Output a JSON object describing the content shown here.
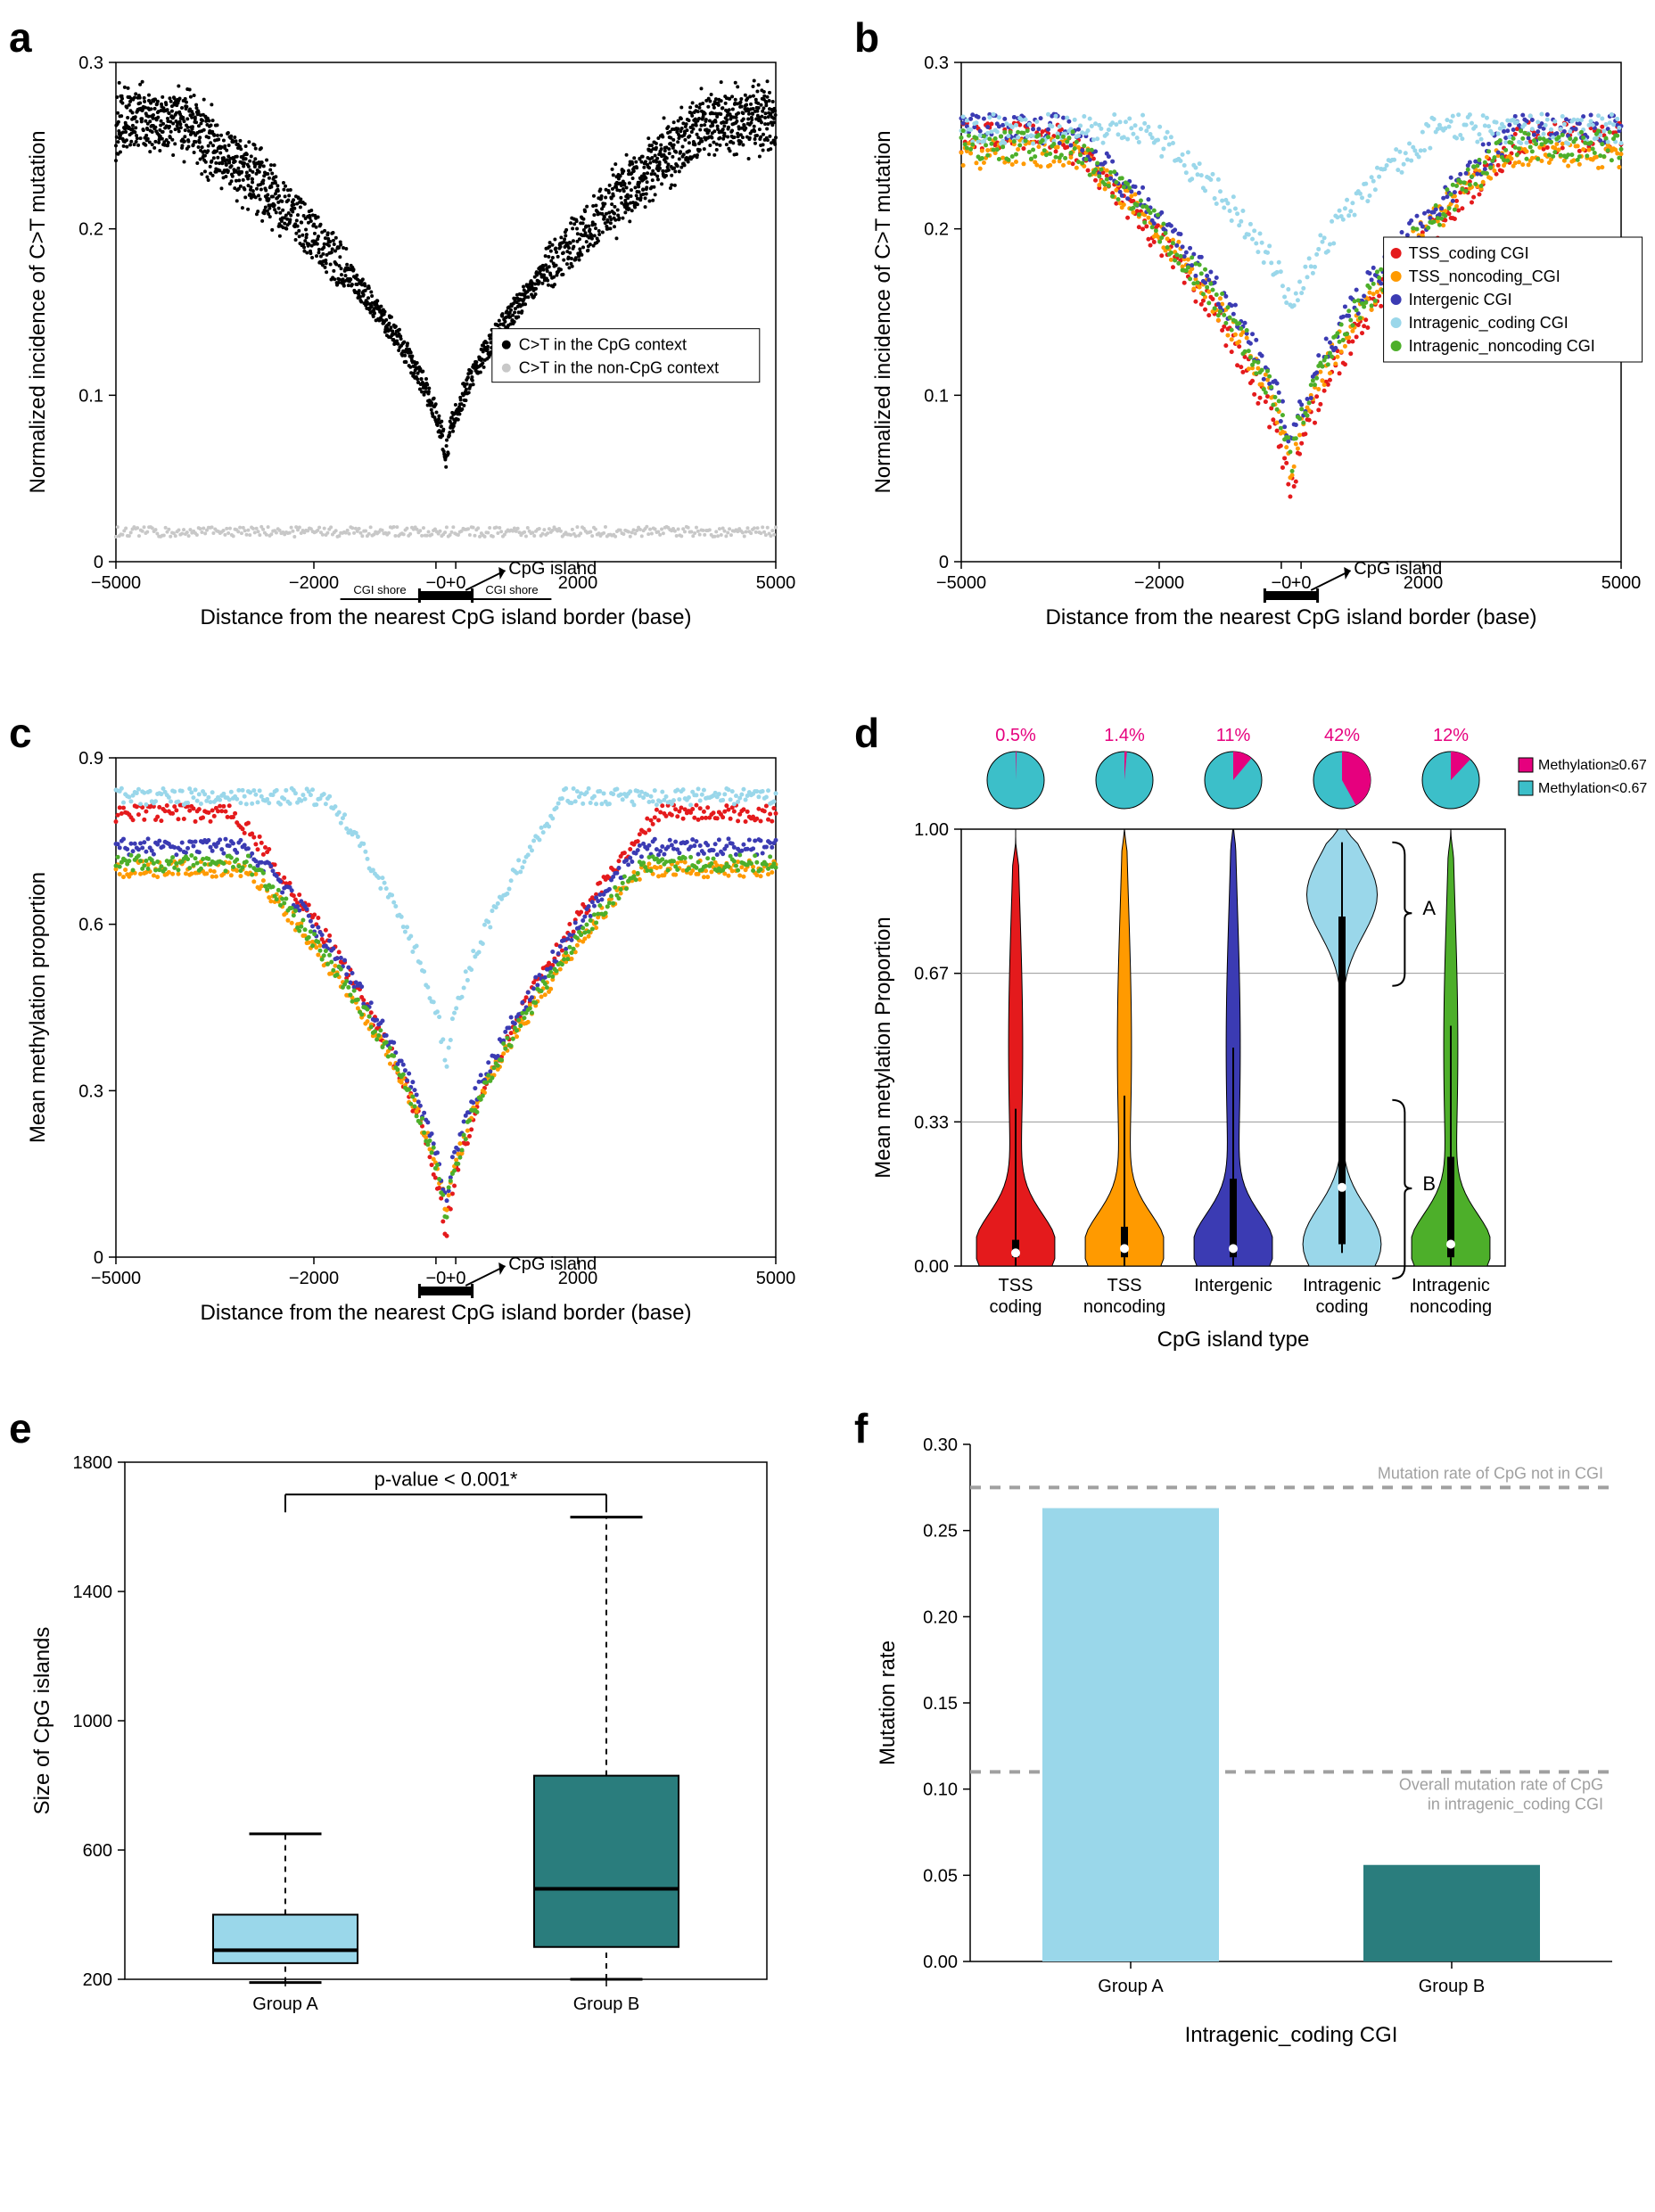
{
  "global": {
    "panel_label_fontsize": 46,
    "axis_label_fontsize": 24,
    "tick_fontsize": 20,
    "legend_fontsize": 18
  },
  "colors": {
    "black": "#000000",
    "grey_light": "#c8c8c8",
    "grey_mid": "#a0a0a0",
    "red": "#e41a1c",
    "orange": "#ff9a00",
    "blue": "#3b3bb3",
    "lightblue": "#9ad7ea",
    "green": "#4daf2a",
    "magenta": "#e6007e",
    "teal": "#2aa198",
    "teal_dark": "#2a7d7d",
    "teal_pie": "#3cbfc9"
  },
  "panel_a": {
    "label": "a",
    "type": "scatter",
    "xlabel": "Distance from the nearest CpG island border (base)",
    "ylabel": "Normalized incidence of C>T mutation",
    "xlim": [
      -5000,
      5000
    ],
    "ylim": [
      0,
      0.3
    ],
    "xticks": [
      -5000,
      -2000,
      0,
      0,
      2000,
      5000
    ],
    "xtick_labels": [
      "−5000",
      "−2000",
      "−0",
      "+0",
      "2000",
      "5000"
    ],
    "yticks": [
      0.0,
      0.1,
      0.2,
      0.3
    ],
    "cpg_island_label": "CpG island",
    "cgi_shore_label": "CGI shore",
    "legend": [
      {
        "label": "C>T in the CpG context",
        "color": "#000000"
      },
      {
        "label": "C>T in the non-CpG context",
        "color": "#c8c8c8"
      }
    ],
    "series": {
      "cpg": {
        "color": "#000000",
        "plateau_y": 0.265,
        "noise": 0.015,
        "decay_start": 4000,
        "min_y": 0.06
      },
      "noncpg": {
        "color": "#c8c8c8",
        "flat_y": 0.018,
        "noise": 0.003
      }
    }
  },
  "panel_b": {
    "label": "b",
    "type": "scatter",
    "xlabel": "Distance from the nearest CpG island border (base)",
    "ylabel": "Normalized incidence of C>T mutation",
    "xlim": [
      -5000,
      5000
    ],
    "ylim": [
      0,
      0.3
    ],
    "xticks": [
      -5000,
      -2000,
      0,
      0,
      2000,
      5000
    ],
    "xtick_labels": [
      "−5000",
      "−2000",
      "−0",
      "+0",
      "2000",
      "5000"
    ],
    "yticks": [
      0.0,
      0.1,
      0.2,
      0.3
    ],
    "cpg_island_label": "CpG island",
    "legend": [
      {
        "label": "TSS_coding CGI",
        "color": "#e41a1c"
      },
      {
        "label": "TSS_noncoding_CGI",
        "color": "#ff9a00"
      },
      {
        "label": "Intergenic CGI",
        "color": "#3b3bb3"
      },
      {
        "label": "Intragenic_coding CGI",
        "color": "#9ad7ea"
      },
      {
        "label": "Intragenic_noncoding CGI",
        "color": "#4daf2a"
      }
    ],
    "series": [
      {
        "color": "#e41a1c",
        "plateau_y": 0.255,
        "min_y": 0.035,
        "decay_start": 3500
      },
      {
        "color": "#ff9a00",
        "plateau_y": 0.245,
        "min_y": 0.05,
        "decay_start": 3200
      },
      {
        "color": "#3b3bb3",
        "plateau_y": 0.26,
        "min_y": 0.06,
        "decay_start": 3400
      },
      {
        "color": "#9ad7ea",
        "plateau_y": 0.26,
        "min_y": 0.145,
        "decay_start": 2200
      },
      {
        "color": "#4daf2a",
        "plateau_y": 0.25,
        "min_y": 0.055,
        "decay_start": 3300
      }
    ]
  },
  "panel_c": {
    "label": "c",
    "type": "scatter",
    "xlabel": "Distance from the nearest CpG island border (base)",
    "ylabel": "Mean methylation proportion",
    "xlim": [
      -5000,
      5000
    ],
    "ylim": [
      0,
      0.9
    ],
    "xticks": [
      -5000,
      -2000,
      0,
      0,
      2000,
      5000
    ],
    "xtick_labels": [
      "−5000",
      "−2000",
      "−0",
      "+0",
      "2000",
      "5000"
    ],
    "yticks": [
      0.0,
      0.3,
      0.6,
      0.9
    ],
    "cpg_island_label": "CpG island",
    "series": [
      {
        "color": "#e41a1c",
        "plateau_y": 0.8,
        "min_y": 0.02,
        "decay_start": 3200
      },
      {
        "color": "#ff9a00",
        "plateau_y": 0.7,
        "min_y": 0.06,
        "decay_start": 3000
      },
      {
        "color": "#3b3bb3",
        "plateau_y": 0.74,
        "min_y": 0.08,
        "decay_start": 3000
      },
      {
        "color": "#9ad7ea",
        "plateau_y": 0.83,
        "min_y": 0.33,
        "decay_start": 1800
      },
      {
        "color": "#4daf2a",
        "plateau_y": 0.71,
        "min_y": 0.06,
        "decay_start": 3000
      }
    ]
  },
  "panel_d": {
    "label": "d",
    "type": "violin+pie",
    "xlabel": "CpG island type",
    "ylabel": "Mean metylation Proportion",
    "ylim": [
      0,
      1.0
    ],
    "yticks": [
      0.0,
      0.33,
      0.67,
      1.0
    ],
    "ytick_labels": [
      "0.00",
      "0.33",
      "0.67",
      "1.00"
    ],
    "categories": [
      "TSS\ncoding",
      "TSS\nnoncoding",
      "Intergenic",
      "Intragenic\ncoding",
      "Intragenic\nnoncoding"
    ],
    "pie_percent_labels": [
      "0.5%",
      "1.4%",
      "11%",
      "42%",
      "12%"
    ],
    "pie_colors": {
      "high": "#e6007e",
      "low": "#3cbfc9"
    },
    "pie_fractions_high": [
      0.005,
      0.014,
      0.11,
      0.42,
      0.12
    ],
    "legend": [
      {
        "label": "Methylation≥0.67",
        "color": "#e6007e"
      },
      {
        "label": "Methylation<0.67",
        "color": "#3cbfc9"
      }
    ],
    "violins": [
      {
        "color": "#e41a1c",
        "median": 0.03,
        "q1": 0.02,
        "q3": 0.06,
        "max_reach": 0.92,
        "bimodal": false
      },
      {
        "color": "#ff9a00",
        "median": 0.04,
        "q1": 0.02,
        "q3": 0.09,
        "max_reach": 0.95,
        "bimodal": false
      },
      {
        "color": "#3b3bb3",
        "median": 0.04,
        "q1": 0.02,
        "q3": 0.2,
        "max_reach": 0.96,
        "bimodal": false
      },
      {
        "color": "#9ad7ea",
        "median": 0.18,
        "q1": 0.05,
        "q3": 0.8,
        "max_reach": 0.97,
        "bimodal": true
      },
      {
        "color": "#4daf2a",
        "median": 0.05,
        "q1": 0.02,
        "q3": 0.25,
        "max_reach": 0.94,
        "bimodal": false
      }
    ],
    "bracket_labels": {
      "A": "A",
      "B": "B"
    }
  },
  "panel_e": {
    "label": "e",
    "type": "boxplot",
    "ylabel": "Size of CpG islands",
    "ylim": [
      200,
      1800
    ],
    "yticks": [
      200,
      600,
      1000,
      1400,
      1800
    ],
    "categories": [
      "Group A",
      "Group B"
    ],
    "pvalue_text": "p-value < 0.001*",
    "boxes": [
      {
        "color": "#9ad7ea",
        "min": 190,
        "q1": 250,
        "median": 290,
        "q3": 400,
        "max": 650
      },
      {
        "color": "#2a7d7d",
        "min": 200,
        "q1": 300,
        "median": 480,
        "q3": 830,
        "max": 1630
      }
    ]
  },
  "panel_f": {
    "label": "f",
    "type": "bar",
    "xlabel": "Intragenic_coding CGI",
    "ylabel": "Mutation rate",
    "ylim": [
      0,
      0.3
    ],
    "yticks": [
      0.0,
      0.05,
      0.1,
      0.15,
      0.2,
      0.25,
      0.3
    ],
    "categories": [
      "Group A",
      "Group B"
    ],
    "bars": [
      {
        "color": "#9ad7ea",
        "value": 0.263
      },
      {
        "color": "#2a7d7d",
        "value": 0.056
      }
    ],
    "ref_lines": [
      {
        "y": 0.275,
        "label": "Mutation rate of CpG not in CGI",
        "color": "#a0a0a0"
      },
      {
        "y": 0.11,
        "label": "Overall mutation rate of CpG\nin intragenic_coding CGI",
        "color": "#a0a0a0"
      }
    ]
  }
}
